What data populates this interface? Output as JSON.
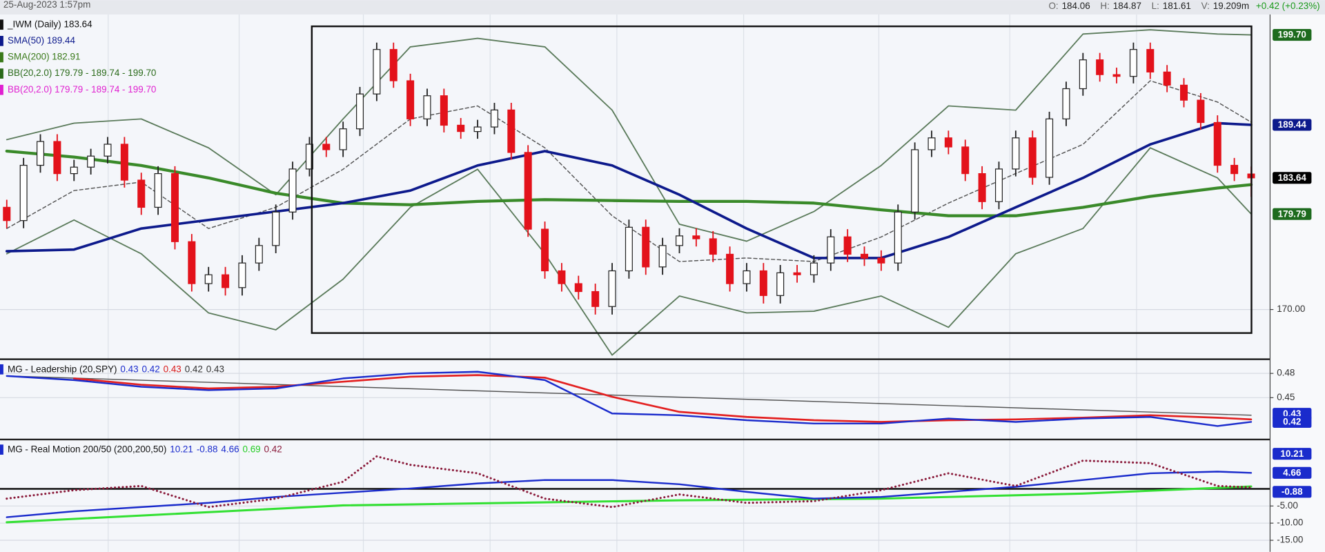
{
  "header": {
    "datetime": "25-Aug-2023 1:57pm",
    "open_label": "O:",
    "open": 184.06,
    "high_label": "H:",
    "high": 184.87,
    "low_label": "L:",
    "low": 181.61,
    "volume_label": "V:",
    "volume": "19.209m",
    "change": "+0.42 (+0.23%)"
  },
  "chart_data": [
    {
      "type": "candlestick",
      "scale": "log",
      "ylim": [
        165.2,
        202
      ],
      "yticks": [
        {
          "value": 170,
          "label": "170.00"
        }
      ],
      "grid": true,
      "up_color": "#ffffff",
      "down_color": "#e3121b",
      "candles": [
        [
          180.5,
          181.3,
          178.3,
          179.1
        ],
        [
          179.1,
          185.8,
          178.3,
          185.0
        ],
        [
          185.0,
          188.4,
          184.2,
          187.6
        ],
        [
          187.6,
          188.4,
          183.3,
          184.1
        ],
        [
          184.1,
          185.6,
          183.3,
          184.8
        ],
        [
          184.8,
          186.8,
          184.0,
          186.0
        ],
        [
          186.0,
          188.1,
          185.2,
          187.3
        ],
        [
          187.3,
          188.1,
          182.6,
          183.4
        ],
        [
          183.4,
          184.2,
          179.7,
          180.5
        ],
        [
          180.5,
          184.9,
          179.7,
          184.1
        ],
        [
          184.1,
          184.9,
          176.1,
          176.9
        ],
        [
          176.9,
          177.7,
          171.8,
          172.6
        ],
        [
          172.6,
          174.3,
          171.8,
          173.5
        ],
        [
          173.5,
          174.3,
          171.4,
          172.2
        ],
        [
          172.2,
          175.5,
          171.4,
          174.7
        ],
        [
          174.7,
          177.3,
          173.9,
          176.5
        ],
        [
          176.5,
          180.8,
          175.7,
          180.0
        ],
        [
          180.0,
          185.4,
          179.2,
          184.6
        ],
        [
          184.6,
          188.1,
          183.8,
          187.3
        ],
        [
          187.3,
          188.1,
          185.9,
          186.7
        ],
        [
          186.7,
          189.8,
          185.9,
          189.0
        ],
        [
          189.0,
          193.7,
          188.2,
          192.9
        ],
        [
          192.9,
          198.8,
          192.1,
          198.0
        ],
        [
          198.0,
          198.8,
          193.6,
          194.4
        ],
        [
          194.4,
          195.2,
          189.3,
          190.1
        ],
        [
          190.1,
          193.5,
          189.3,
          192.7
        ],
        [
          192.7,
          193.5,
          188.6,
          189.4
        ],
        [
          189.4,
          190.2,
          187.9,
          188.7
        ],
        [
          188.7,
          190.0,
          187.9,
          189.2
        ],
        [
          189.2,
          191.9,
          188.4,
          191.1
        ],
        [
          191.1,
          191.9,
          185.6,
          186.4
        ],
        [
          186.4,
          187.2,
          177.4,
          178.2
        ],
        [
          178.2,
          179.0,
          173.1,
          173.9
        ],
        [
          173.9,
          174.7,
          171.8,
          172.6
        ],
        [
          172.6,
          173.4,
          171.0,
          171.8
        ],
        [
          171.8,
          172.6,
          169.5,
          170.3
        ],
        [
          170.3,
          174.7,
          169.5,
          173.9
        ],
        [
          173.9,
          179.2,
          173.1,
          178.4
        ],
        [
          178.4,
          179.2,
          173.5,
          174.3
        ],
        [
          174.3,
          177.3,
          173.5,
          176.5
        ],
        [
          176.5,
          178.3,
          175.7,
          177.5
        ],
        [
          177.5,
          178.3,
          176.4,
          177.2
        ],
        [
          177.2,
          178.0,
          174.8,
          175.6
        ],
        [
          175.6,
          176.4,
          171.8,
          172.6
        ],
        [
          172.6,
          174.7,
          171.8,
          173.9
        ],
        [
          173.9,
          174.7,
          170.6,
          171.4
        ],
        [
          171.4,
          174.5,
          170.6,
          173.7
        ],
        [
          173.7,
          174.5,
          172.7,
          173.5
        ],
        [
          173.5,
          175.5,
          172.7,
          174.7
        ],
        [
          174.7,
          178.2,
          173.9,
          177.4
        ],
        [
          177.4,
          178.2,
          174.8,
          175.6
        ],
        [
          175.6,
          176.4,
          174.4,
          175.2
        ],
        [
          175.2,
          176.0,
          173.9,
          174.7
        ],
        [
          174.7,
          180.8,
          173.9,
          180.0
        ],
        [
          180.0,
          187.5,
          179.2,
          186.7
        ],
        [
          186.7,
          188.8,
          185.9,
          188.0
        ],
        [
          188.0,
          188.8,
          186.2,
          187.0
        ],
        [
          187.0,
          187.8,
          183.3,
          184.1
        ],
        [
          184.1,
          184.9,
          180.3,
          181.1
        ],
        [
          181.1,
          185.4,
          180.3,
          184.6
        ],
        [
          184.6,
          188.8,
          183.8,
          188.0
        ],
        [
          188.0,
          188.8,
          182.9,
          183.7
        ],
        [
          183.7,
          190.9,
          182.9,
          190.1
        ],
        [
          190.1,
          194.3,
          189.3,
          193.5
        ],
        [
          193.5,
          197.6,
          192.7,
          196.8
        ],
        [
          196.8,
          197.6,
          194.3,
          195.1
        ],
        [
          195.1,
          195.9,
          194.1,
          194.9
        ],
        [
          194.9,
          198.8,
          194.1,
          198.0
        ],
        [
          198.0,
          198.8,
          194.6,
          195.4
        ],
        [
          195.4,
          196.2,
          193.1,
          193.9
        ],
        [
          193.9,
          194.7,
          191.4,
          192.2
        ],
        [
          192.2,
          193.0,
          188.9,
          189.7
        ],
        [
          189.7,
          190.5,
          184.2,
          185.0
        ],
        [
          185.0,
          185.8,
          183.3,
          184.1
        ],
        [
          184.06,
          184.87,
          181.61,
          183.64
        ]
      ],
      "lines": [
        {
          "name": "BB upper",
          "color": "#5a7a5a",
          "width": 1.5,
          "dash": false,
          "x": [
            0,
            4,
            8,
            12,
            16,
            20,
            24,
            28,
            32,
            36,
            40,
            44,
            48,
            52,
            56,
            60,
            64,
            68,
            72,
            74
          ],
          "values": [
            187.8,
            189.63,
            190.1,
            186.9,
            181.84,
            190.1,
            198.3,
            199.3,
            198.3,
            191.08,
            178.72,
            176.95,
            180.05,
            184.98,
            191.55,
            191.08,
            199.8,
            200.3,
            199.8,
            199.7
          ]
        },
        {
          "name": "BB lower",
          "color": "#5a7a5a",
          "width": 1.5,
          "dash": false,
          "x": [
            0,
            4,
            8,
            12,
            16,
            20,
            24,
            28,
            32,
            36,
            40,
            44,
            48,
            52,
            56,
            60,
            64,
            68,
            72,
            74
          ],
          "values": [
            175.65,
            179.16,
            175.65,
            169.66,
            167.99,
            173.05,
            180.5,
            184.57,
            175.65,
            165.52,
            171.35,
            169.66,
            169.83,
            171.35,
            168.24,
            175.65,
            178.27,
            186.9,
            183.64,
            179.79
          ]
        },
        {
          "name": "BB middle",
          "color": "#555555",
          "width": 1.2,
          "dash": true,
          "x": [
            0,
            4,
            8,
            12,
            16,
            20,
            24,
            28,
            32,
            36,
            40,
            44,
            48,
            52,
            56,
            60,
            64,
            68,
            72,
            74
          ],
          "values": [
            178.27,
            182.28,
            183.19,
            178.27,
            180.5,
            184.57,
            190.1,
            191.55,
            186.9,
            179.61,
            174.85,
            175.21,
            174.85,
            177.39,
            180.95,
            184.11,
            187.28,
            194.4,
            191.99,
            189.74
          ]
        },
        {
          "name": "SMA(200)",
          "color": "#3a8a2a",
          "width": 3.5,
          "dash": false,
          "x": [
            0,
            4,
            8,
            12,
            16,
            20,
            24,
            28,
            32,
            36,
            40,
            44,
            48,
            52,
            56,
            60,
            64,
            68,
            72,
            74
          ],
          "values": [
            186.54,
            185.9,
            184.98,
            183.64,
            182.0,
            180.95,
            180.77,
            181.13,
            181.31,
            181.22,
            181.13,
            181.13,
            180.95,
            180.23,
            179.61,
            179.61,
            180.5,
            181.66,
            182.55,
            182.91
          ]
        },
        {
          "name": "SMA(50)",
          "color": "#0d1a8c",
          "width": 3,
          "dash": false,
          "x": [
            0,
            4,
            8,
            12,
            16,
            20,
            24,
            28,
            32,
            36,
            40,
            44,
            48,
            52,
            56,
            60,
            64,
            68,
            72,
            74
          ],
          "values": [
            175.91,
            176.08,
            178.27,
            179.16,
            180.05,
            180.95,
            182.28,
            184.98,
            186.54,
            184.98,
            181.84,
            178.27,
            175.21,
            175.21,
            177.39,
            180.5,
            183.64,
            187.28,
            189.63,
            189.44
          ]
        }
      ],
      "legend": [
        {
          "text": "_IWM (Daily) 183.64",
          "color": "#111111"
        },
        {
          "text": "SMA(50) 189.44",
          "color": "#0d1a8c"
        },
        {
          "text": "SMA(200) 182.91",
          "color": "#3a7a1a"
        },
        {
          "text": "BB(20,2.0) 179.79 - 189.74 - 199.70",
          "color": "#2a6a1a"
        },
        {
          "text": "BB(20,2.0) 179.79 - 189.74 - 199.70",
          "color": "#e020d0"
        }
      ],
      "badges": [
        {
          "value": 199.7,
          "label": "199.70",
          "color": "#1e6b1e"
        },
        {
          "value": 189.44,
          "label": "189.44",
          "color": "#0d1a8c"
        },
        {
          "value": 183.64,
          "label": "183.64",
          "color": "#000000"
        },
        {
          "value": 179.79,
          "label": "179.79",
          "color": "#1e6b1e"
        }
      ]
    },
    {
      "type": "line",
      "title": "MG - Leadership (20,SPY)",
      "ylim": [
        0.3993,
        0.4965
      ],
      "yticks": [
        0.48,
        0.45
      ],
      "grid": true,
      "title_values": [
        {
          "text": "0.43",
          "color": "#1a2bcc"
        },
        {
          "text": "0.42",
          "color": "#1a2bcc"
        },
        {
          "text": "0.43",
          "color": "#d81818"
        },
        {
          "text": "0.42",
          "color": "#333333"
        },
        {
          "text": "0.43",
          "color": "#333333"
        }
      ],
      "lines": [
        {
          "name": "trend",
          "color": "#555555",
          "width": 1.2,
          "dash": false,
          "x": [
            0,
            74
          ],
          "values": [
            0.4769,
            0.4283
          ]
        },
        {
          "name": "average",
          "color": "#e32020",
          "width": 2.2,
          "dash": false,
          "x": [
            0,
            4,
            8,
            12,
            16,
            20,
            24,
            28,
            32,
            36,
            40,
            44,
            48,
            52,
            56,
            60,
            64,
            68,
            72,
            74
          ],
          "values": [
            null,
            0.4738,
            0.466,
            0.4614,
            0.4635,
            0.4697,
            0.4759,
            0.4779,
            0.4748,
            0.451,
            0.4324,
            0.4262,
            0.4221,
            0.42,
            0.4221,
            0.4231,
            0.4252,
            0.4283,
            0.4252,
            0.4231
          ]
        },
        {
          "name": "leadership",
          "color": "#1a2bcc",
          "width": 2,
          "dash": false,
          "x": [
            0,
            4,
            8,
            12,
            16,
            20,
            24,
            28,
            32,
            36,
            40,
            44,
            48,
            52,
            56,
            60,
            64,
            68,
            72,
            74
          ],
          "values": [
            0.4769,
            0.4717,
            0.4635,
            0.4593,
            0.4614,
            0.4738,
            0.48,
            0.4821,
            0.4717,
            0.4304,
            0.4283,
            0.4221,
            0.418,
            0.418,
            0.4242,
            0.42,
            0.4242,
            0.4262,
            0.4149,
            0.42
          ]
        }
      ],
      "badges": [
        {
          "value": 0.43,
          "label": "0.43",
          "color": "#1a2bcc"
        },
        {
          "value": 0.42,
          "label": "0.42",
          "color": "#1a2bcc"
        }
      ]
    },
    {
      "type": "line",
      "title": "MG - Real Motion 200/50 (200,200,50)",
      "ylim": [
        -18.37,
        14.14
      ],
      "yticks": [
        {
          "value": -5,
          "label": "-5.00"
        },
        {
          "value": -10,
          "label": "-10.00"
        },
        {
          "value": -15,
          "label": "-15.00"
        }
      ],
      "grid": true,
      "reference_line": 0,
      "title_values": [
        {
          "text": "10.21",
          "color": "#1a2bcc"
        },
        {
          "text": "-0.88",
          "color": "#1a2bcc"
        },
        {
          "text": "4.66",
          "color": "#1a2bcc"
        },
        {
          "text": "0.69",
          "color": "#22cc22"
        },
        {
          "text": "0.42",
          "color": "#8a1a3a"
        }
      ],
      "lines": [
        {
          "name": "slow",
          "color": "#33e033",
          "width": 2.5,
          "dash": false,
          "x": [
            0,
            20,
            40,
            52,
            64,
            74
          ],
          "values": [
            -9.75,
            -4.82,
            -3.34,
            -2.85,
            -1.37,
            0.69
          ]
        },
        {
          "name": "mean",
          "color": "#1a2bcc",
          "width": 2,
          "dash": false,
          "x": [
            0,
            4,
            8,
            12,
            16,
            20,
            24,
            28,
            32,
            36,
            40,
            44,
            48,
            52,
            56,
            60,
            64,
            68,
            72,
            74
          ],
          "values": [
            -8.27,
            -6.55,
            -5.31,
            -4.08,
            -2.36,
            -1.13,
            0.11,
            1.58,
            2.57,
            2.57,
            1.34,
            -0.88,
            -2.85,
            -2.36,
            -0.88,
            0.6,
            2.57,
            4.54,
            5.03,
            4.66
          ]
        },
        {
          "name": "motion",
          "color": "#8a1a3a",
          "width": 2.5,
          "dash": "dot",
          "x": [
            0,
            4,
            8,
            12,
            16,
            20,
            22,
            24,
            28,
            32,
            36,
            40,
            44,
            48,
            52,
            56,
            60,
            64,
            68,
            72,
            74
          ],
          "values": [
            -2.85,
            -0.39,
            0.84,
            -5.31,
            -2.85,
            2.08,
            9.46,
            7.0,
            4.54,
            -2.85,
            -5.31,
            -1.62,
            -4.08,
            -3.59,
            -0.39,
            4.54,
            0.84,
            8.23,
            7.49,
            0.84,
            0.42
          ]
        }
      ],
      "badges": [
        {
          "value": 10.21,
          "label": "10.21",
          "color": "#1a2bcc"
        },
        {
          "value": 4.66,
          "label": "4.66",
          "color": "#1a2bcc"
        },
        {
          "value": -0.88,
          "label": "-0.88",
          "color": "#1a2bcc"
        }
      ]
    }
  ]
}
